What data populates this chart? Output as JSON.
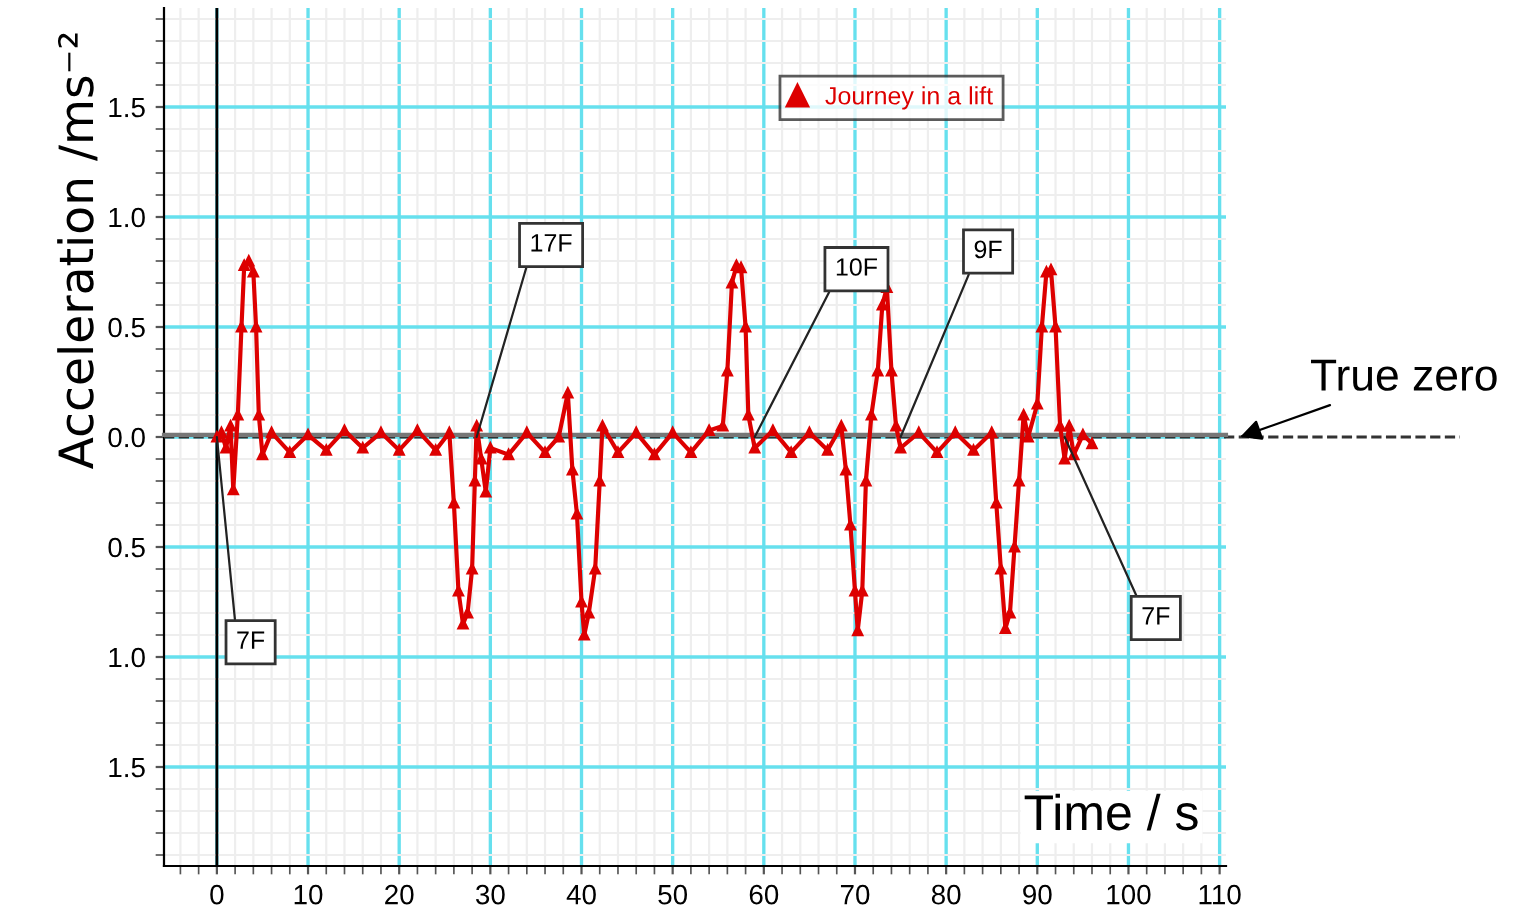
{
  "chart_data": {
    "type": "line",
    "xlabel": "Time / s",
    "ylabel": "Acceleration /ms⁻²",
    "xlim": [
      -5.8,
      110.7
    ],
    "ylim": [
      -1.95,
      1.95
    ],
    "xticks": [
      0,
      10,
      20,
      30,
      40,
      50,
      60,
      70,
      80,
      90,
      100,
      110
    ],
    "yticks": [
      {
        "value": -1.5,
        "label": "1.5"
      },
      {
        "value": -1.0,
        "label": "1.0"
      },
      {
        "value": -0.5,
        "label": "0.5"
      },
      {
        "value": 0,
        "label": "0.0"
      },
      0.5,
      {
        "value": 1.0,
        "label": "1.0"
      },
      1.5
    ],
    "grid": true,
    "legend": "top right",
    "marker": "triangle",
    "line_style": "solid",
    "series": [
      {
        "name": "Journey in a lift",
        "color": "#dd0000",
        "x": [
          0,
          0.5,
          1,
          1.5,
          1.8,
          2.3,
          2.7,
          3,
          3.5,
          4,
          4.3,
          4.6,
          5,
          6,
          8,
          10,
          12,
          14,
          16,
          18,
          20,
          22,
          24,
          25.5,
          26,
          26.5,
          27,
          27.5,
          28,
          28.3,
          28.5,
          29,
          29.5,
          30,
          32,
          34,
          36,
          37.5,
          38.5,
          39,
          39.5,
          40,
          40.3,
          40.8,
          41.5,
          42,
          42.3,
          44,
          46,
          48,
          50,
          52,
          54,
          55.5,
          56,
          56.5,
          57,
          57.5,
          58,
          58.3,
          59,
          61,
          63,
          65,
          67,
          68.5,
          69,
          69.5,
          70,
          70.3,
          70.8,
          71.2,
          71.8,
          72.5,
          73,
          73.5,
          74,
          74.5,
          75,
          77,
          79,
          81,
          83,
          85,
          85.5,
          86,
          86.5,
          87,
          87.5,
          88,
          88.5,
          89,
          90,
          90.5,
          91,
          91.5,
          92,
          92.5,
          93,
          93.5,
          94,
          95,
          96
        ],
        "values": [
          0,
          0.02,
          -0.05,
          0.05,
          -0.24,
          0.1,
          0.5,
          0.78,
          0.8,
          0.75,
          0.5,
          0.1,
          -0.08,
          0.02,
          -0.07,
          0.01,
          -0.06,
          0.03,
          -0.05,
          0.02,
          -0.06,
          0.03,
          -0.06,
          0.02,
          -0.3,
          -0.7,
          -0.85,
          -0.8,
          -0.6,
          -0.2,
          0.05,
          -0.1,
          -0.25,
          -0.05,
          -0.08,
          0.02,
          -0.07,
          0,
          0.2,
          -0.15,
          -0.35,
          -0.75,
          -0.9,
          -0.8,
          -0.6,
          -0.2,
          0.05,
          -0.07,
          0.02,
          -0.08,
          0.02,
          -0.07,
          0.03,
          0.05,
          0.3,
          0.7,
          0.78,
          0.77,
          0.5,
          0.1,
          -0.05,
          0.03,
          -0.07,
          0.02,
          -0.06,
          0.05,
          -0.15,
          -0.4,
          -0.7,
          -0.88,
          -0.7,
          -0.2,
          0.1,
          0.3,
          0.6,
          0.68,
          0.3,
          0.05,
          -0.05,
          0.02,
          -0.07,
          0.02,
          -0.06,
          0.02,
          -0.3,
          -0.6,
          -0.87,
          -0.8,
          -0.5,
          -0.2,
          0.1,
          0,
          0.15,
          0.5,
          0.75,
          0.76,
          0.5,
          0.05,
          -0.1,
          0.05,
          -0.08,
          0.01,
          -0.03
        ]
      }
    ],
    "ref_lines": [
      {
        "axis": "y",
        "value": 0,
        "label": "True zero",
        "line_style": "dashed",
        "color": "#333333"
      },
      {
        "axis": "y",
        "value": 0.01,
        "color": "#777777",
        "line_style": "solid"
      },
      {
        "axis": "x",
        "value": 0,
        "color": "#000000",
        "line_style": "solid"
      }
    ],
    "annotations": [
      {
        "text": "7F",
        "x": 0,
        "y": 0
      },
      {
        "text": "17F",
        "x": 28.5,
        "y": 0
      },
      {
        "text": "10F",
        "x": 59,
        "y": 0
      },
      {
        "text": "9F",
        "x": 75,
        "y": 0
      },
      {
        "text": "7F",
        "x": 93,
        "y": 0
      }
    ]
  }
}
